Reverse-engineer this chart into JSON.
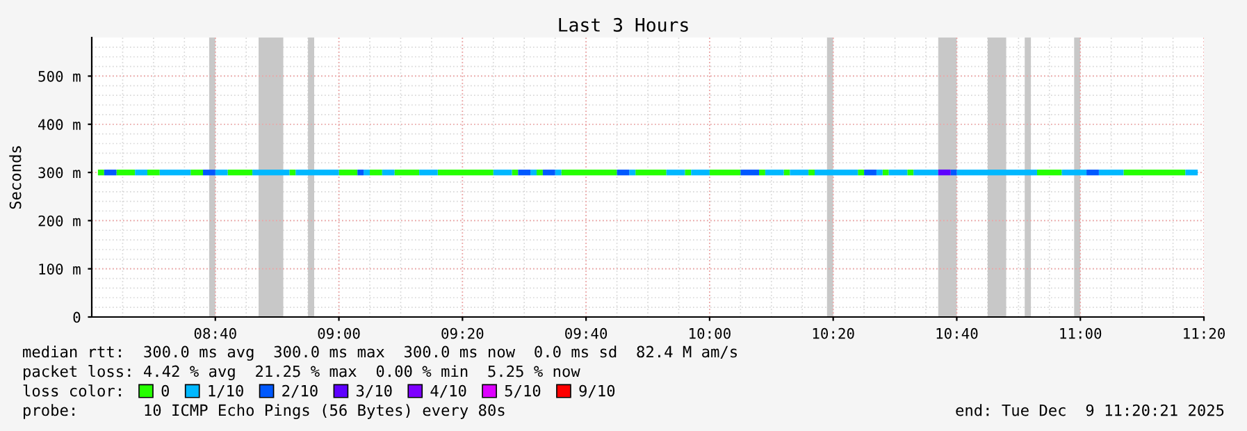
{
  "chart_data": {
    "type": "line",
    "title": "Last 3 Hours",
    "ylabel": "Seconds",
    "legend_title": "loss color:",
    "legend": "bottom",
    "grid": true,
    "xlim": [
      "2025-12-09T08:20",
      "2025-12-09T11:20"
    ],
    "xticks": [
      {
        "value": "2025-12-09T08:40",
        "label": "08:40"
      },
      {
        "value": "2025-12-09T09:00",
        "label": "09:00"
      },
      {
        "value": "2025-12-09T09:20",
        "label": "09:20"
      },
      {
        "value": "2025-12-09T09:40",
        "label": "09:40"
      },
      {
        "value": "2025-12-09T10:00",
        "label": "10:00"
      },
      {
        "value": "2025-12-09T10:20",
        "label": "10:20"
      },
      {
        "value": "2025-12-09T10:40",
        "label": "10:40"
      },
      {
        "value": "2025-12-09T11:00",
        "label": "11:00"
      },
      {
        "value": "2025-12-09T11:20",
        "label": "11:20"
      }
    ],
    "ylim": [
      0,
      580
    ],
    "yticks": [
      0,
      {
        "value": 100,
        "label": "100 m"
      },
      {
        "value": 200,
        "label": "200 m"
      },
      {
        "value": 300,
        "label": "300 m"
      },
      {
        "value": 400,
        "label": "400 m"
      },
      {
        "value": 500,
        "label": "500 m"
      }
    ],
    "series": [
      {
        "name": "0",
        "color": "#26ff00",
        "x": [
          "2025-12-09T08:21",
          "2025-12-09T08:22",
          null,
          "2025-12-09T08:24",
          "2025-12-09T08:27",
          null,
          "2025-12-09T08:29",
          "2025-12-09T08:31",
          null,
          "2025-12-09T08:36",
          "2025-12-09T08:38",
          null,
          "2025-12-09T08:42",
          "2025-12-09T08:46",
          null,
          "2025-12-09T08:52",
          "2025-12-09T08:53",
          null,
          "2025-12-09T09:00",
          "2025-12-09T09:03",
          null,
          "2025-12-09T09:05",
          "2025-12-09T09:07",
          null,
          "2025-12-09T09:09",
          "2025-12-09T09:13",
          null,
          "2025-12-09T09:16",
          "2025-12-09T09:25",
          null,
          "2025-12-09T09:28",
          "2025-12-09T09:29",
          null,
          "2025-12-09T09:32",
          "2025-12-09T09:33",
          null,
          "2025-12-09T09:36",
          "2025-12-09T09:45",
          null,
          "2025-12-09T09:48",
          "2025-12-09T09:53",
          null,
          "2025-12-09T09:56",
          "2025-12-09T09:57",
          null,
          "2025-12-09T10:00",
          "2025-12-09T10:05",
          null,
          "2025-12-09T10:08",
          "2025-12-09T10:09",
          null,
          "2025-12-09T10:12",
          "2025-12-09T10:13",
          null,
          "2025-12-09T10:16",
          "2025-12-09T10:17",
          null,
          "2025-12-09T10:24",
          "2025-12-09T10:25",
          null,
          "2025-12-09T10:28",
          "2025-12-09T10:29",
          null,
          "2025-12-09T10:32",
          "2025-12-09T10:33",
          null,
          "2025-12-09T10:53",
          "2025-12-09T10:57",
          null,
          "2025-12-09T11:07",
          "2025-12-09T11:17"
        ],
        "values": [
          300,
          300,
          null,
          300,
          300,
          null,
          300,
          300,
          null,
          300,
          300,
          null,
          300,
          300,
          null,
          300,
          300,
          null,
          300,
          300,
          null,
          300,
          300,
          null,
          300,
          300,
          null,
          300,
          300,
          null,
          300,
          300,
          null,
          300,
          300,
          null,
          300,
          300,
          null,
          300,
          300,
          null,
          300,
          300,
          null,
          300,
          300,
          null,
          300,
          300,
          null,
          300,
          300,
          null,
          300,
          300,
          null,
          300,
          300,
          null,
          300,
          300,
          null,
          300,
          300,
          null,
          300,
          300,
          null,
          300,
          300
        ]
      },
      {
        "name": "1/10",
        "color": "#00b8ff",
        "x": [
          "2025-12-09T08:27",
          "2025-12-09T08:29",
          null,
          "2025-12-09T08:31",
          "2025-12-09T08:36",
          null,
          "2025-12-09T08:40",
          "2025-12-09T08:42",
          null,
          "2025-12-09T08:46",
          "2025-12-09T08:52",
          null,
          "2025-12-09T08:53",
          "2025-12-09T09:00",
          null,
          "2025-12-09T09:04",
          "2025-12-09T09:05",
          null,
          "2025-12-09T09:07",
          "2025-12-09T09:09",
          null,
          "2025-12-09T09:13",
          "2025-12-09T09:16",
          null,
          "2025-12-09T09:25",
          "2025-12-09T09:28",
          null,
          "2025-12-09T09:31",
          "2025-12-09T09:32",
          null,
          "2025-12-09T09:35",
          "2025-12-09T09:36",
          null,
          "2025-12-09T09:47",
          "2025-12-09T09:48",
          null,
          "2025-12-09T09:53",
          "2025-12-09T09:56",
          null,
          "2025-12-09T09:57",
          "2025-12-09T10:00",
          null,
          "2025-12-09T10:09",
          "2025-12-09T10:12",
          null,
          "2025-12-09T10:13",
          "2025-12-09T10:16",
          null,
          "2025-12-09T10:17",
          "2025-12-09T10:24",
          null,
          "2025-12-09T10:27",
          "2025-12-09T10:28",
          null,
          "2025-12-09T10:29",
          "2025-12-09T10:32",
          null,
          "2025-12-09T10:33",
          "2025-12-09T10:37",
          null,
          "2025-12-09T10:40",
          "2025-12-09T10:53",
          null,
          "2025-12-09T10:57",
          "2025-12-09T11:01",
          null,
          "2025-12-09T11:03",
          "2025-12-09T11:07",
          null,
          "2025-12-09T11:17",
          "2025-12-09T11:19"
        ],
        "values": [
          300,
          300,
          null,
          300,
          300,
          null,
          300,
          300,
          null,
          300,
          300,
          null,
          300,
          300,
          null,
          300,
          300,
          null,
          300,
          300,
          null,
          300,
          300,
          null,
          300,
          300,
          null,
          300,
          300,
          null,
          300,
          300,
          null,
          300,
          300,
          null,
          300,
          300,
          null,
          300,
          300,
          null,
          300,
          300,
          null,
          300,
          300,
          null,
          300,
          300,
          null,
          300,
          300,
          null,
          300,
          300,
          null,
          300,
          300,
          null,
          300,
          300,
          null,
          300,
          300,
          null,
          300,
          300,
          null,
          300,
          300
        ]
      },
      {
        "name": "2/10",
        "color": "#0059ff",
        "x": [
          "2025-12-09T08:22",
          "2025-12-09T08:24",
          null,
          "2025-12-09T08:38",
          "2025-12-09T08:40",
          null,
          "2025-12-09T09:03",
          "2025-12-09T09:04",
          null,
          "2025-12-09T09:29",
          "2025-12-09T09:31",
          null,
          "2025-12-09T09:33",
          "2025-12-09T09:35",
          null,
          "2025-12-09T09:45",
          "2025-12-09T09:47",
          null,
          "2025-12-09T10:05",
          "2025-12-09T10:08",
          null,
          "2025-12-09T10:25",
          "2025-12-09T10:27",
          null,
          "2025-12-09T10:39",
          "2025-12-09T10:40",
          null,
          "2025-12-09T11:01",
          "2025-12-09T11:03"
        ],
        "values": [
          300,
          300,
          null,
          300,
          300,
          null,
          300,
          300,
          null,
          300,
          300,
          null,
          300,
          300,
          null,
          300,
          300,
          null,
          300,
          300,
          null,
          300,
          300,
          null,
          300,
          300,
          null,
          300,
          300
        ]
      },
      {
        "name": "3/10",
        "color": "#5e00ff",
        "x": [
          "2025-12-09T10:37",
          "2025-12-09T10:39"
        ],
        "values": [
          300,
          300
        ]
      },
      {
        "name": "4/10",
        "color": "#7e00ff"
      },
      {
        "name": "5/10",
        "color": "#dd00ff"
      },
      {
        "name": "9/10",
        "color": "#ff0000"
      }
    ],
    "bands": [
      {
        "axis": "x",
        "from": "2025-12-09T08:39",
        "to": "2025-12-09T08:40",
        "color": "#c8c8c8"
      },
      {
        "axis": "x",
        "from": "2025-12-09T08:47",
        "to": "2025-12-09T08:51",
        "color": "#c8c8c8"
      },
      {
        "axis": "x",
        "from": "2025-12-09T08:55",
        "to": "2025-12-09T08:56",
        "color": "#c8c8c8"
      },
      {
        "axis": "x",
        "from": "2025-12-09T10:19",
        "to": "2025-12-09T10:20",
        "color": "#c8c8c8"
      },
      {
        "axis": "x",
        "from": "2025-12-09T10:37",
        "to": "2025-12-09T10:40",
        "color": "#c8c8c8"
      },
      {
        "axis": "x",
        "from": "2025-12-09T10:45",
        "to": "2025-12-09T10:48",
        "color": "#c8c8c8"
      },
      {
        "axis": "x",
        "from": "2025-12-09T10:51",
        "to": "2025-12-09T10:52",
        "color": "#c8c8c8"
      },
      {
        "axis": "x",
        "from": "2025-12-09T10:59",
        "to": "2025-12-09T11:00",
        "color": "#c8c8c8"
      }
    ],
    "annotations": [
      "median rtt:  300.0 ms avg  300.0 ms max  300.0 ms now  0.0 ms sd  82.4 M am/s",
      "packet loss: 4.42 % avg  21.25 % max  0.00 % min  5.25 % now",
      "probe:       10 ICMP Echo Pings (56 Bytes) every 80s",
      "end: Tue Dec  9 11:20:21 2025"
    ]
  }
}
